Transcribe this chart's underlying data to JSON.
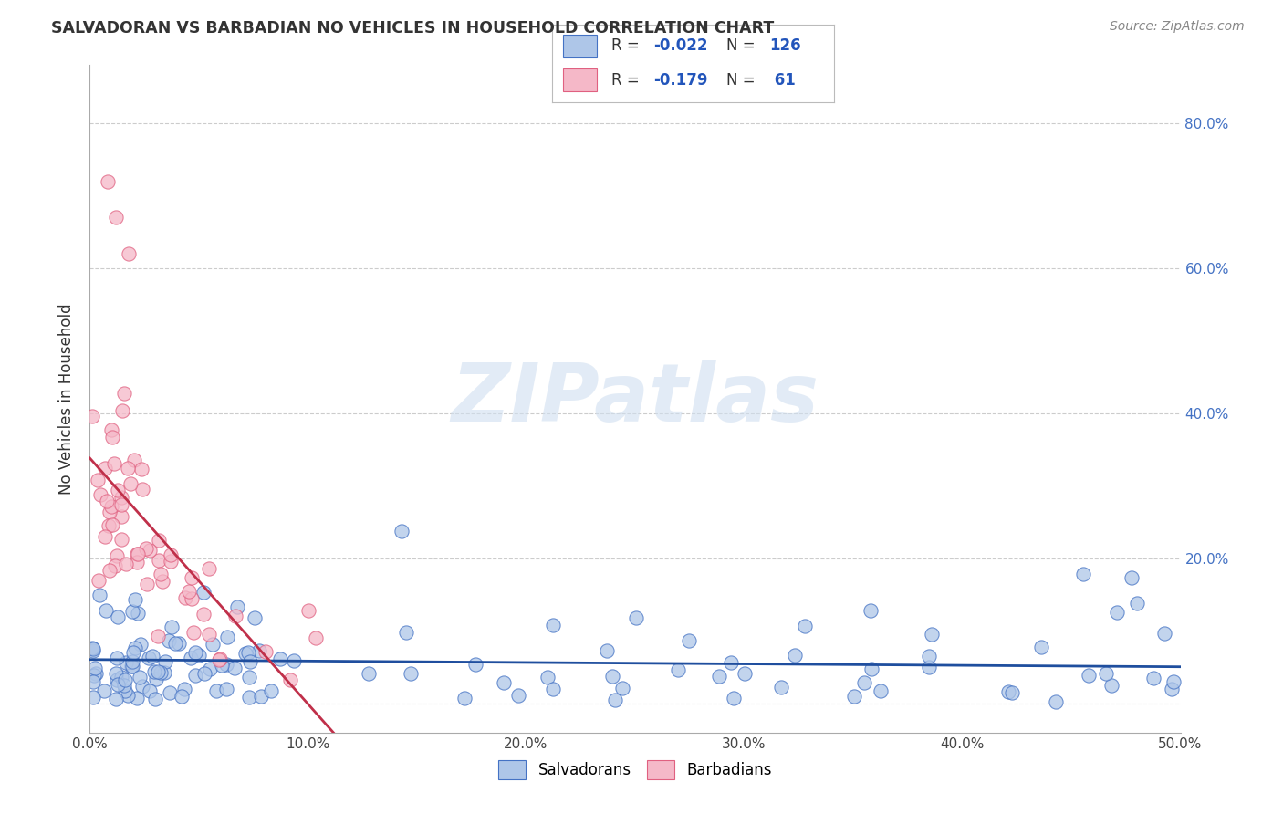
{
  "title": "SALVADORAN VS BARBADIAN NO VEHICLES IN HOUSEHOLD CORRELATION CHART",
  "source": "Source: ZipAtlas.com",
  "ylabel": "No Vehicles in Household",
  "xlim": [
    0.0,
    0.5
  ],
  "ylim": [
    -0.04,
    0.88
  ],
  "yticks": [
    0.0,
    0.2,
    0.4,
    0.6,
    0.8
  ],
  "ytick_labels": [
    "",
    "20.0%",
    "40.0%",
    "60.0%",
    "80.0%"
  ],
  "xticks": [
    0.0,
    0.1,
    0.2,
    0.3,
    0.4,
    0.5
  ],
  "xtick_labels": [
    "0.0%",
    "10.0%",
    "20.0%",
    "30.0%",
    "40.0%",
    "50.0%"
  ],
  "legend_blue_R": "-0.022",
  "legend_blue_N": "126",
  "legend_pink_R": "-0.179",
  "legend_pink_N": "61",
  "blue_fill": "#aec6e8",
  "pink_fill": "#f5b8c8",
  "blue_edge": "#4472c4",
  "pink_edge": "#e06080",
  "blue_line": "#1f4e9e",
  "pink_line": "#c0304a",
  "watermark_color": "#d0dff0",
  "watermark_alpha": 0.6,
  "background_color": "#ffffff",
  "grid_color": "#cccccc",
  "right_tick_color": "#4472c4",
  "title_color": "#333333",
  "source_color": "#888888"
}
